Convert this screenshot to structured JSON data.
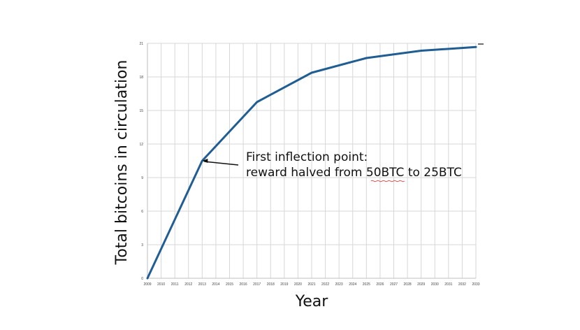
{
  "chart_data": {
    "type": "line",
    "title": "",
    "xlabel": "Year",
    "ylabel": "Total bitcoins in circulation",
    "x": [
      2009,
      2010,
      2011,
      2012,
      2013,
      2014,
      2015,
      2016,
      2017,
      2018,
      2019,
      2020,
      2021,
      2022,
      2023,
      2024,
      2025,
      2026,
      2027,
      2028,
      2029,
      2030,
      2031,
      2032,
      2033
    ],
    "x_tick_labels": [
      "2009",
      "2010",
      "2011",
      "2012",
      "2013",
      "2014",
      "2015",
      "2016",
      "2017",
      "2018",
      "2019",
      "2020",
      "2021",
      "2022",
      "2023",
      "2024",
      "2025",
      "2026",
      "2027",
      "2028",
      "2029",
      "2030",
      "2031",
      "2032",
      "2033"
    ],
    "y_ticks": [
      0,
      3,
      6,
      9,
      12,
      15,
      18,
      21
    ],
    "y_tick_labels": [
      "0",
      "3",
      "6",
      "9",
      "12",
      "15",
      "18",
      "21"
    ],
    "xlim": [
      2009,
      2033
    ],
    "ylim": [
      0,
      21
    ],
    "grid": true,
    "series": [
      {
        "x": [
          2009,
          2013,
          2017,
          2021,
          2025,
          2029,
          2033
        ],
        "values": [
          0,
          10.5,
          15.75,
          18.375,
          19.6875,
          20.34375,
          20.671875
        ]
      }
    ],
    "annotations": [
      {
        "target_x": 2013,
        "target_y": 10.5,
        "lines": [
          "First inflection point:",
          "reward halved from 50BTC to 25BTC"
        ]
      }
    ]
  },
  "colors": {
    "line": "#1f5d93",
    "grid": "#d7d7d7",
    "annotation_underline": "#d94b4b"
  }
}
